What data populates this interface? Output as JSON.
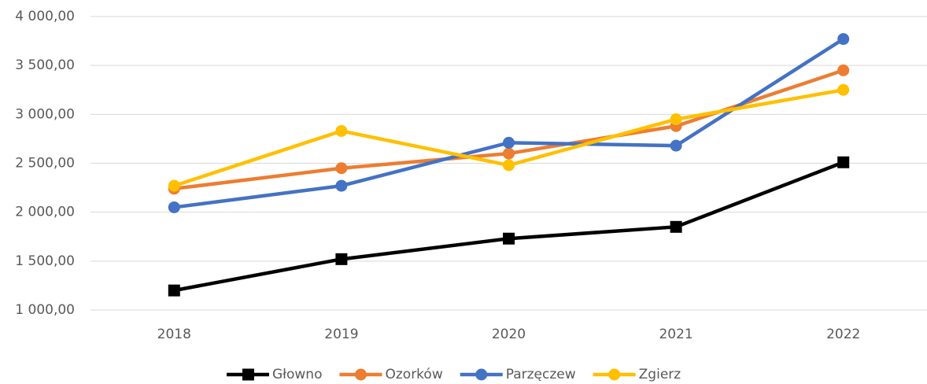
{
  "chart_data": {
    "type": "line",
    "categories": [
      "2018",
      "2019",
      "2020",
      "2021",
      "2022"
    ],
    "series": [
      {
        "name": "Głowno",
        "color": "#000000",
        "marker": "square",
        "values": [
          1200,
          1520,
          1730,
          1850,
          2510
        ]
      },
      {
        "name": "Ozorków",
        "color": "#ed7d31",
        "marker": "circle",
        "values": [
          2240,
          2450,
          2600,
          2880,
          3450
        ]
      },
      {
        "name": "Parzęczew",
        "color": "#4472c4",
        "marker": "circle",
        "values": [
          2050,
          2270,
          2710,
          2680,
          3770
        ]
      },
      {
        "name": "Zgierz",
        "color": "#ffc000",
        "marker": "circle",
        "values": [
          2270,
          2830,
          2480,
          2950,
          3250
        ]
      }
    ],
    "ylim": [
      1000,
      4000
    ],
    "yticks": [
      {
        "value": 1000,
        "label": "1 000,00"
      },
      {
        "value": 1500,
        "label": "1 500,00"
      },
      {
        "value": 2000,
        "label": "2 000,00"
      },
      {
        "value": 2500,
        "label": "2 500,00"
      },
      {
        "value": 3000,
        "label": "3 000,00"
      },
      {
        "value": 3500,
        "label": "3 500,00"
      },
      {
        "value": 4000,
        "label": "4 000,00"
      }
    ],
    "grid": true,
    "legend": "bottom"
  }
}
